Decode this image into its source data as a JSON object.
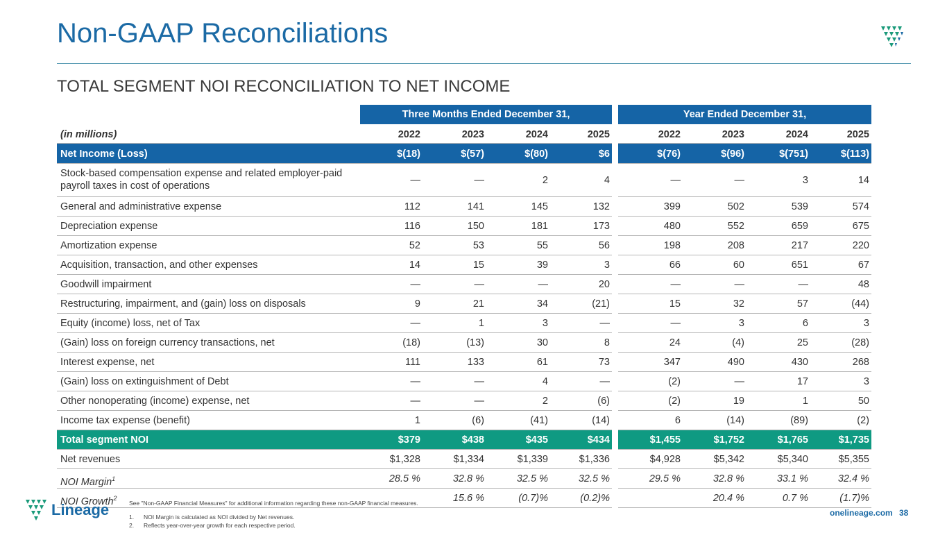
{
  "header": {
    "title": "Non-GAAP Reconciliations",
    "subtitle": "TOTAL SEGMENT NOI RECONCILIATION TO NET INCOME"
  },
  "table": {
    "groups": [
      "Three Months Ended December 31,",
      "Year Ended December 31,"
    ],
    "units": "(in millions)",
    "columns": [
      "2022",
      "2023",
      "2024",
      "2025",
      "2022",
      "2023",
      "2024",
      "2025"
    ],
    "net_income": {
      "label": "Net Income (Loss)",
      "values": [
        "$(18)",
        "$(57)",
        "$(80)",
        "$6",
        "$(76)",
        "$(96)",
        "$(751)",
        "$(113)"
      ]
    },
    "rows": [
      {
        "label": "Stock-based compensation expense and related employer-paid payroll taxes in cost of operations",
        "values": [
          "—",
          "—",
          "2",
          "4",
          "—",
          "—",
          "3",
          "14"
        ]
      },
      {
        "label": "General and administrative expense",
        "values": [
          "112",
          "141",
          "145",
          "132",
          "399",
          "502",
          "539",
          "574"
        ]
      },
      {
        "label": "Depreciation expense",
        "values": [
          "116",
          "150",
          "181",
          "173",
          "480",
          "552",
          "659",
          "675"
        ]
      },
      {
        "label": "Amortization expense",
        "values": [
          "52",
          "53",
          "55",
          "56",
          "198",
          "208",
          "217",
          "220"
        ]
      },
      {
        "label": "Acquisition, transaction, and other expenses",
        "values": [
          "14",
          "15",
          "39",
          "3",
          "66",
          "60",
          "651",
          "67"
        ]
      },
      {
        "label": "Goodwill impairment",
        "values": [
          "—",
          "—",
          "—",
          "20",
          "—",
          "—",
          "—",
          "48"
        ]
      },
      {
        "label": "Restructuring, impairment, and (gain) loss on disposals",
        "values": [
          "9",
          "21",
          "34",
          "(21)",
          "15",
          "32",
          "57",
          "(44)"
        ]
      },
      {
        "label": "Equity (income) loss, net of Tax",
        "values": [
          "—",
          "1",
          "3",
          "—",
          "—",
          "3",
          "6",
          "3"
        ]
      },
      {
        "label": "(Gain) loss on foreign currency transactions, net",
        "values": [
          "(18)",
          "(13)",
          "30",
          "8",
          "24",
          "(4)",
          "25",
          "(28)"
        ]
      },
      {
        "label": "Interest expense, net",
        "values": [
          "111",
          "133",
          "61",
          "73",
          "347",
          "490",
          "430",
          "268"
        ]
      },
      {
        "label": "(Gain) loss on extinguishment of Debt",
        "values": [
          "—",
          "—",
          "4",
          "—",
          "(2)",
          "—",
          "17",
          "3"
        ]
      },
      {
        "label": "Other nonoperating (income) expense, net",
        "values": [
          "—",
          "—",
          "2",
          "(6)",
          "(2)",
          "19",
          "1",
          "50"
        ]
      },
      {
        "label": "Income tax expense (benefit)",
        "values": [
          "1",
          "(6)",
          "(41)",
          "(14)",
          "6",
          "(14)",
          "(89)",
          "(2)"
        ]
      }
    ],
    "total": {
      "label": "Total segment NOI",
      "values": [
        "$379",
        "$438",
        "$435",
        "$434",
        "$1,455",
        "$1,752",
        "$1,765",
        "$1,735"
      ]
    },
    "revenues": {
      "label": "Net revenues",
      "values": [
        "$1,328",
        "$1,334",
        "$1,339",
        "$1,336",
        "$4,928",
        "$5,342",
        "$5,340",
        "$5,355"
      ]
    },
    "metrics": [
      {
        "label": "NOI Margin",
        "note": "1",
        "values": [
          "28.5 %",
          "32.8 %",
          "32.5 %",
          "32.5 %",
          "29.5 %",
          "32.8 %",
          "33.1 %",
          "32.4 %"
        ]
      },
      {
        "label": "NOI Growth",
        "note": "2",
        "values": [
          null,
          "15.6 %",
          "(0.7)%",
          "(0.2)%",
          null,
          "20.4 %",
          "0.7 %",
          "(1.7)%"
        ]
      }
    ]
  },
  "footer": {
    "see": "See \"Non-GAAP Financial Measures\" for additional information regarding these non-GAAP financial measures.",
    "notes": [
      {
        "number": "1.",
        "text": "NOI Margin is calculated as NOI divided by Net revenues."
      },
      {
        "number": "2.",
        "text": "Reflects year-over-year growth for each respective period."
      }
    ],
    "logo": "Lineage",
    "website": "onelineage.com",
    "page": "38"
  }
}
